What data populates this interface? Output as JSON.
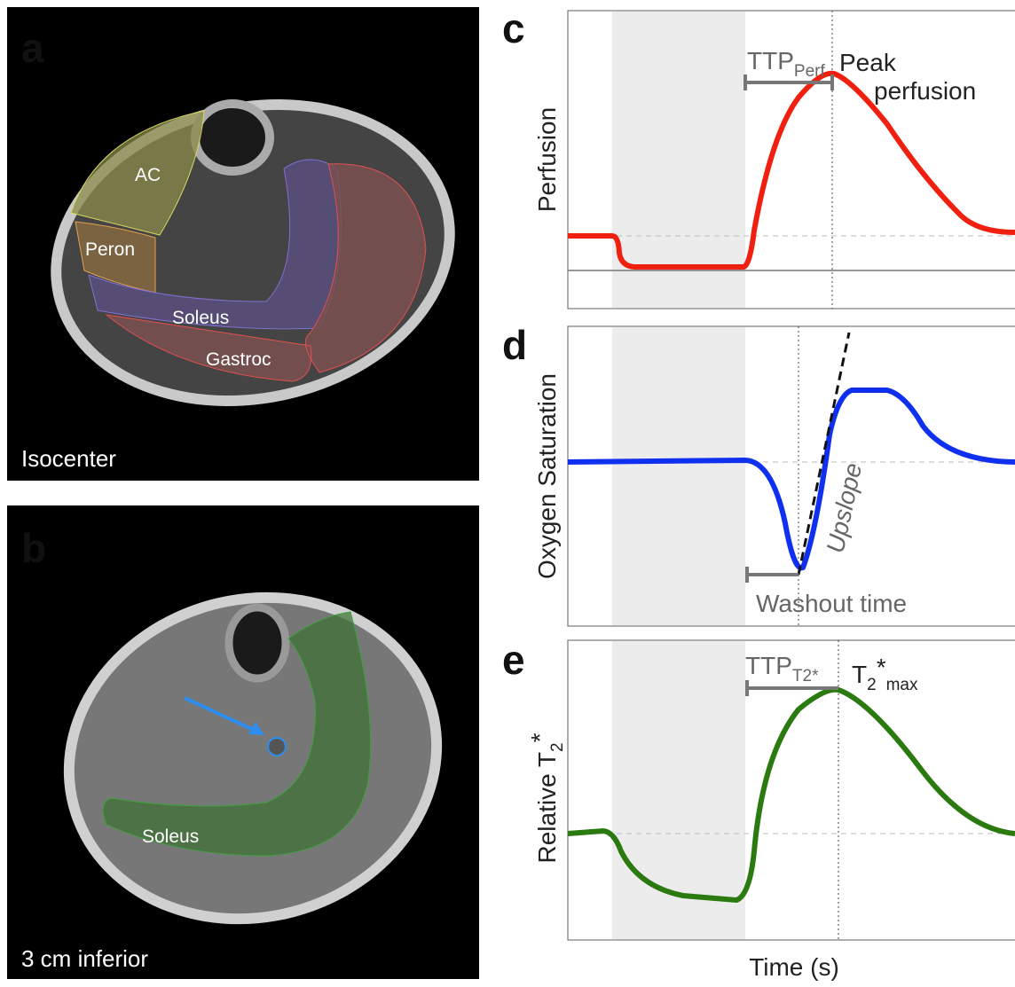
{
  "panels": {
    "a": {
      "label": "a",
      "regions": [
        "AC",
        "Peron",
        "Soleus",
        "Gastroc"
      ],
      "caption": "Isocenter"
    },
    "b": {
      "label": "b",
      "regions": [
        "Soleus"
      ],
      "caption": "3 cm inferior"
    },
    "c": {
      "label": "c",
      "ylabel": "Perfusion",
      "ttp": "TTP",
      "ttp_sub": "Perf",
      "peak_line1": "Peak",
      "peak_line2": "perfusion"
    },
    "d": {
      "label": "d",
      "ylabel": "Oxygen Saturation",
      "upslope": "Upslope",
      "washout": "Washout time"
    },
    "e": {
      "label": "e",
      "ylabel": "Relative T",
      "ylabel_sub": "2",
      "ylabel_star": "*",
      "ttp": "TTP",
      "ttp_sub": "T2*",
      "max": "T",
      "max_sub": "2",
      "max_star": "*",
      "max_sub2": "max"
    },
    "xlabel": "Time (s)"
  }
}
